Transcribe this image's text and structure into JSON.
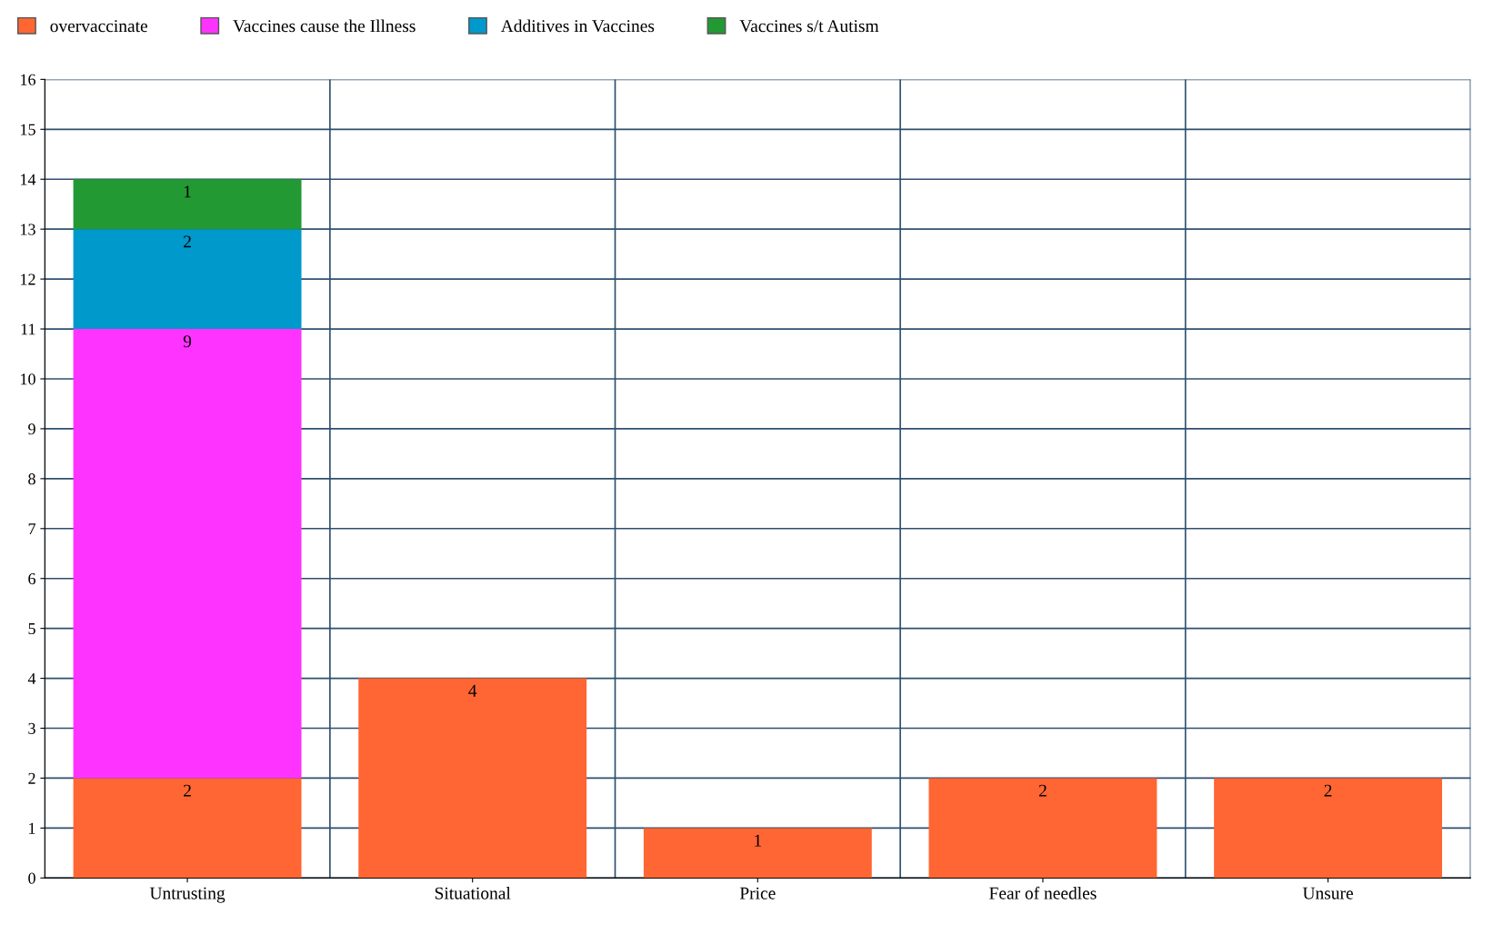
{
  "chart_data": {
    "type": "bar",
    "stacked": true,
    "categories": [
      "Untrusting",
      "Situational",
      "Price",
      "Fear of needles",
      "Unsure"
    ],
    "series": [
      {
        "name": "overvaccinate",
        "color": "#ff6633",
        "values": [
          2,
          4,
          1,
          2,
          2
        ]
      },
      {
        "name": "Vaccines cause the Illness",
        "color": "#ff33ff",
        "values": [
          9,
          null,
          null,
          null,
          null
        ]
      },
      {
        "name": "Additives in Vaccines",
        "color": "#0099cc",
        "values": [
          2,
          null,
          null,
          null,
          null
        ]
      },
      {
        "name": "Vaccines s/t Autism",
        "color": "#229933",
        "values": [
          1,
          null,
          null,
          null,
          null
        ]
      }
    ],
    "ylim": [
      0,
      16
    ],
    "yticks": [
      0,
      1,
      2,
      3,
      4,
      5,
      6,
      7,
      8,
      9,
      10,
      11,
      12,
      13,
      14,
      15,
      16
    ],
    "grid": true,
    "data_labels": true,
    "legend": "top left"
  }
}
